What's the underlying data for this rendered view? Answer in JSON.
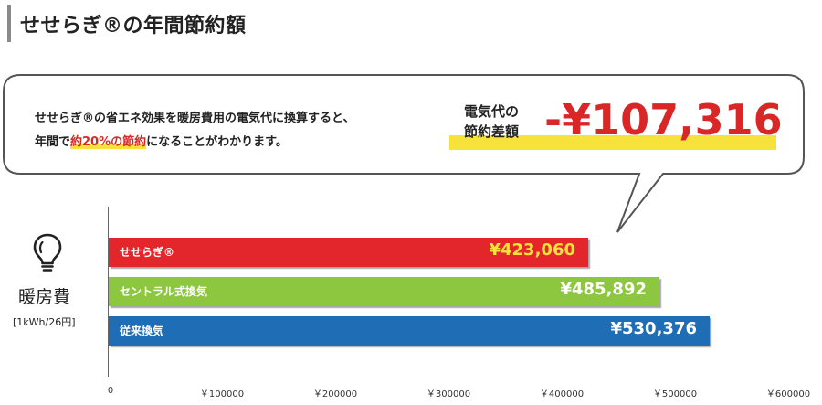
{
  "title": "せせらぎ®の年間節約額",
  "callout": {
    "line1": "せせらぎ®の省エネ効果を暖房費用の電気代に換算すると、",
    "line2_before": "年間で",
    "line2_highlight": "約20%の節約",
    "line2_after": "になることがわかります。",
    "diff_label_line1": "電気代の",
    "diff_label_line2": "節約差額",
    "diff_value": "-¥107,316"
  },
  "y_title": "暖房費",
  "y_unit": "[1kWh/26円]",
  "icon": "lightbulb-icon",
  "colors": {
    "seseragi": "#e3262c",
    "central": "#8dc63f",
    "conventional": "#1f6db5",
    "accent_red": "#d92727",
    "highlight_yellow": "#f6e23a"
  },
  "chart_data": {
    "type": "bar",
    "orientation": "horizontal",
    "categories": [
      "せせらぎ®",
      "セントラル式換気",
      "従来換気"
    ],
    "values": [
      423060,
      485892,
      530376
    ],
    "value_labels": [
      "¥423,060",
      "¥485,892",
      "¥530,376"
    ],
    "xlim": [
      0,
      600000
    ],
    "x_ticks": [
      0,
      100000,
      200000,
      300000,
      400000,
      500000,
      600000
    ],
    "x_tick_labels": [
      "0",
      "￥100000",
      "￥200000",
      "￥300000",
      "￥400000",
      "￥500000",
      "￥600000"
    ],
    "grid": false
  }
}
